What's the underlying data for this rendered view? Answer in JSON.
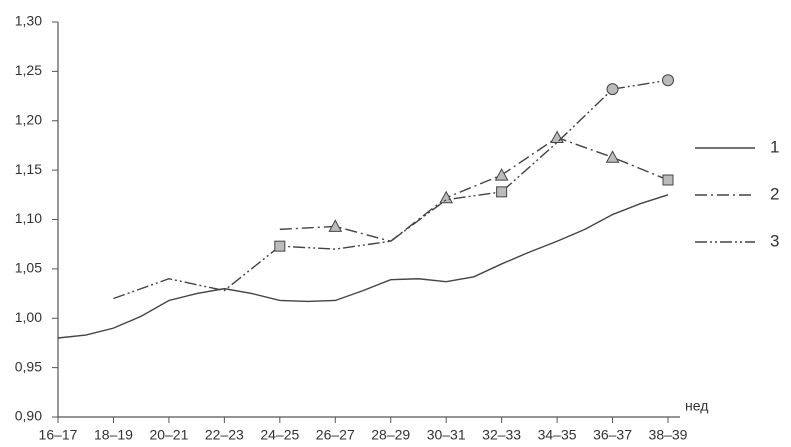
{
  "chart_data": {
    "type": "line",
    "xlabel": "нед",
    "xlim": [
      16.5,
      38.5
    ],
    "xticks": [
      {
        "value": 16.5,
        "label": "16–17"
      },
      {
        "value": 18.5,
        "label": "18–19"
      },
      {
        "value": 20.5,
        "label": "20–21"
      },
      {
        "value": 22.5,
        "label": "22–23"
      },
      {
        "value": 24.5,
        "label": "24–25"
      },
      {
        "value": 26.5,
        "label": "26–27"
      },
      {
        "value": 28.5,
        "label": "28–29"
      },
      {
        "value": 30.5,
        "label": "30–31"
      },
      {
        "value": 32.5,
        "label": "32–33"
      },
      {
        "value": 34.5,
        "label": "34–35"
      },
      {
        "value": 36.5,
        "label": "36–37"
      },
      {
        "value": 38.5,
        "label": "38–39"
      }
    ],
    "ylim": [
      0.9,
      1.3
    ],
    "yticks": [
      {
        "value": 0.9,
        "label": "0,90"
      },
      {
        "value": 0.95,
        "label": "0,95"
      },
      {
        "value": 1.0,
        "label": "1,00"
      },
      {
        "value": 1.05,
        "label": "1,05"
      },
      {
        "value": 1.1,
        "label": "1,10"
      },
      {
        "value": 1.15,
        "label": "1,15"
      },
      {
        "value": 1.2,
        "label": "1,20"
      },
      {
        "value": 1.25,
        "label": "1,25"
      },
      {
        "value": 1.3,
        "label": "1,30"
      }
    ],
    "grid": false,
    "legend": "right",
    "series": [
      {
        "name": "1",
        "color": "#444444",
        "dash": "none",
        "x": [
          16.5,
          17.5,
          18.5,
          19.5,
          20.5,
          21.5,
          22.5,
          23.5,
          24.5,
          25.5,
          26.5,
          27.5,
          28.5,
          29.5,
          30.5,
          31.5,
          32.5,
          33.5,
          34.5,
          35.5,
          36.5,
          37.5,
          38.5
        ],
        "values": [
          0.98,
          0.983,
          0.99,
          1.002,
          1.018,
          1.025,
          1.03,
          1.025,
          1.018,
          1.017,
          1.018,
          1.028,
          1.039,
          1.04,
          1.037,
          1.042,
          1.055,
          1.067,
          1.078,
          1.09,
          1.105,
          1.116,
          1.125
        ],
        "markers": [
          null,
          null,
          null,
          null,
          null,
          null,
          null,
          null,
          null,
          null,
          null,
          null,
          null,
          null,
          null,
          null,
          null,
          null,
          null,
          null,
          null,
          null,
          null
        ]
      },
      {
        "name": "2",
        "color": "#444444",
        "dash": "12 4 2 4",
        "x": [
          24.5,
          26.5,
          28.5,
          30.5,
          32.5,
          34.5,
          36.5,
          38.5
        ],
        "values": [
          1.09,
          1.093,
          1.078,
          1.122,
          1.145,
          1.183,
          1.163,
          1.14
        ],
        "markers": [
          null,
          "triangle",
          null,
          "triangle",
          "triangle",
          "triangle",
          "triangle",
          "square"
        ]
      },
      {
        "name": "3",
        "color": "#444444",
        "dash": "12 3 2 3 2 3",
        "x": [
          18.5,
          20.5,
          22.5,
          24.5,
          26.5,
          28.5,
          30.5,
          32.5,
          34.5,
          36.5,
          38.5
        ],
        "values": [
          1.02,
          1.04,
          1.028,
          1.073,
          1.07,
          1.078,
          1.12,
          1.128,
          1.178,
          1.232,
          1.241
        ],
        "markers": [
          null,
          null,
          null,
          "square",
          null,
          null,
          null,
          "square",
          null,
          "circle",
          "circle"
        ]
      }
    ]
  }
}
